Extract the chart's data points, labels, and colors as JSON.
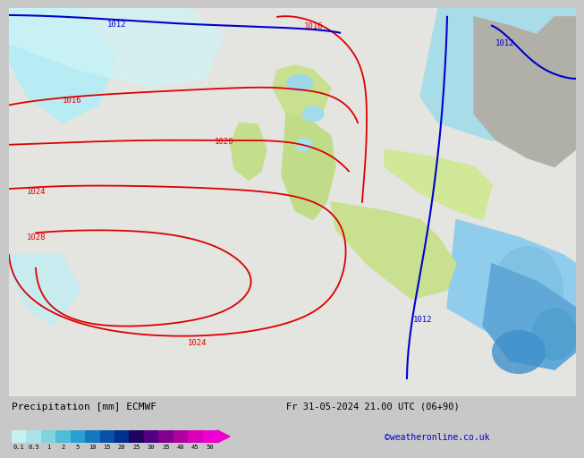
{
  "title_left": "Precipitation [mm] ECMWF",
  "title_right": "Fr 31-05-2024 21.00 UTC (06+90)",
  "watermark": "©weatheronline.co.uk",
  "colorbar_levels": [
    0.1,
    0.5,
    1,
    2,
    5,
    10,
    15,
    20,
    25,
    30,
    35,
    40,
    45,
    50
  ],
  "colorbar_colors": [
    "#c8f0f0",
    "#a8e4e8",
    "#80d4e0",
    "#50bcd8",
    "#28a0d0",
    "#1478c0",
    "#0850a8",
    "#003090",
    "#200060",
    "#500080",
    "#800090",
    "#b000a0",
    "#d800b8",
    "#f000d0"
  ],
  "bg_color": "#c8c8c8",
  "ocean_bg": "#e8e8e8",
  "land_green": "#b8d88a",
  "land_gray": "#b8b8b8",
  "precip_light_cyan": "#b0e8f0",
  "precip_medium_blue": "#70c0e0",
  "font_color_title": "#000000",
  "font_color_watermark": "#0000cc",
  "red_isobar_color": "#dd0000",
  "blue_isobar_color": "#0000cc",
  "blue_front_color": "#0000cc"
}
